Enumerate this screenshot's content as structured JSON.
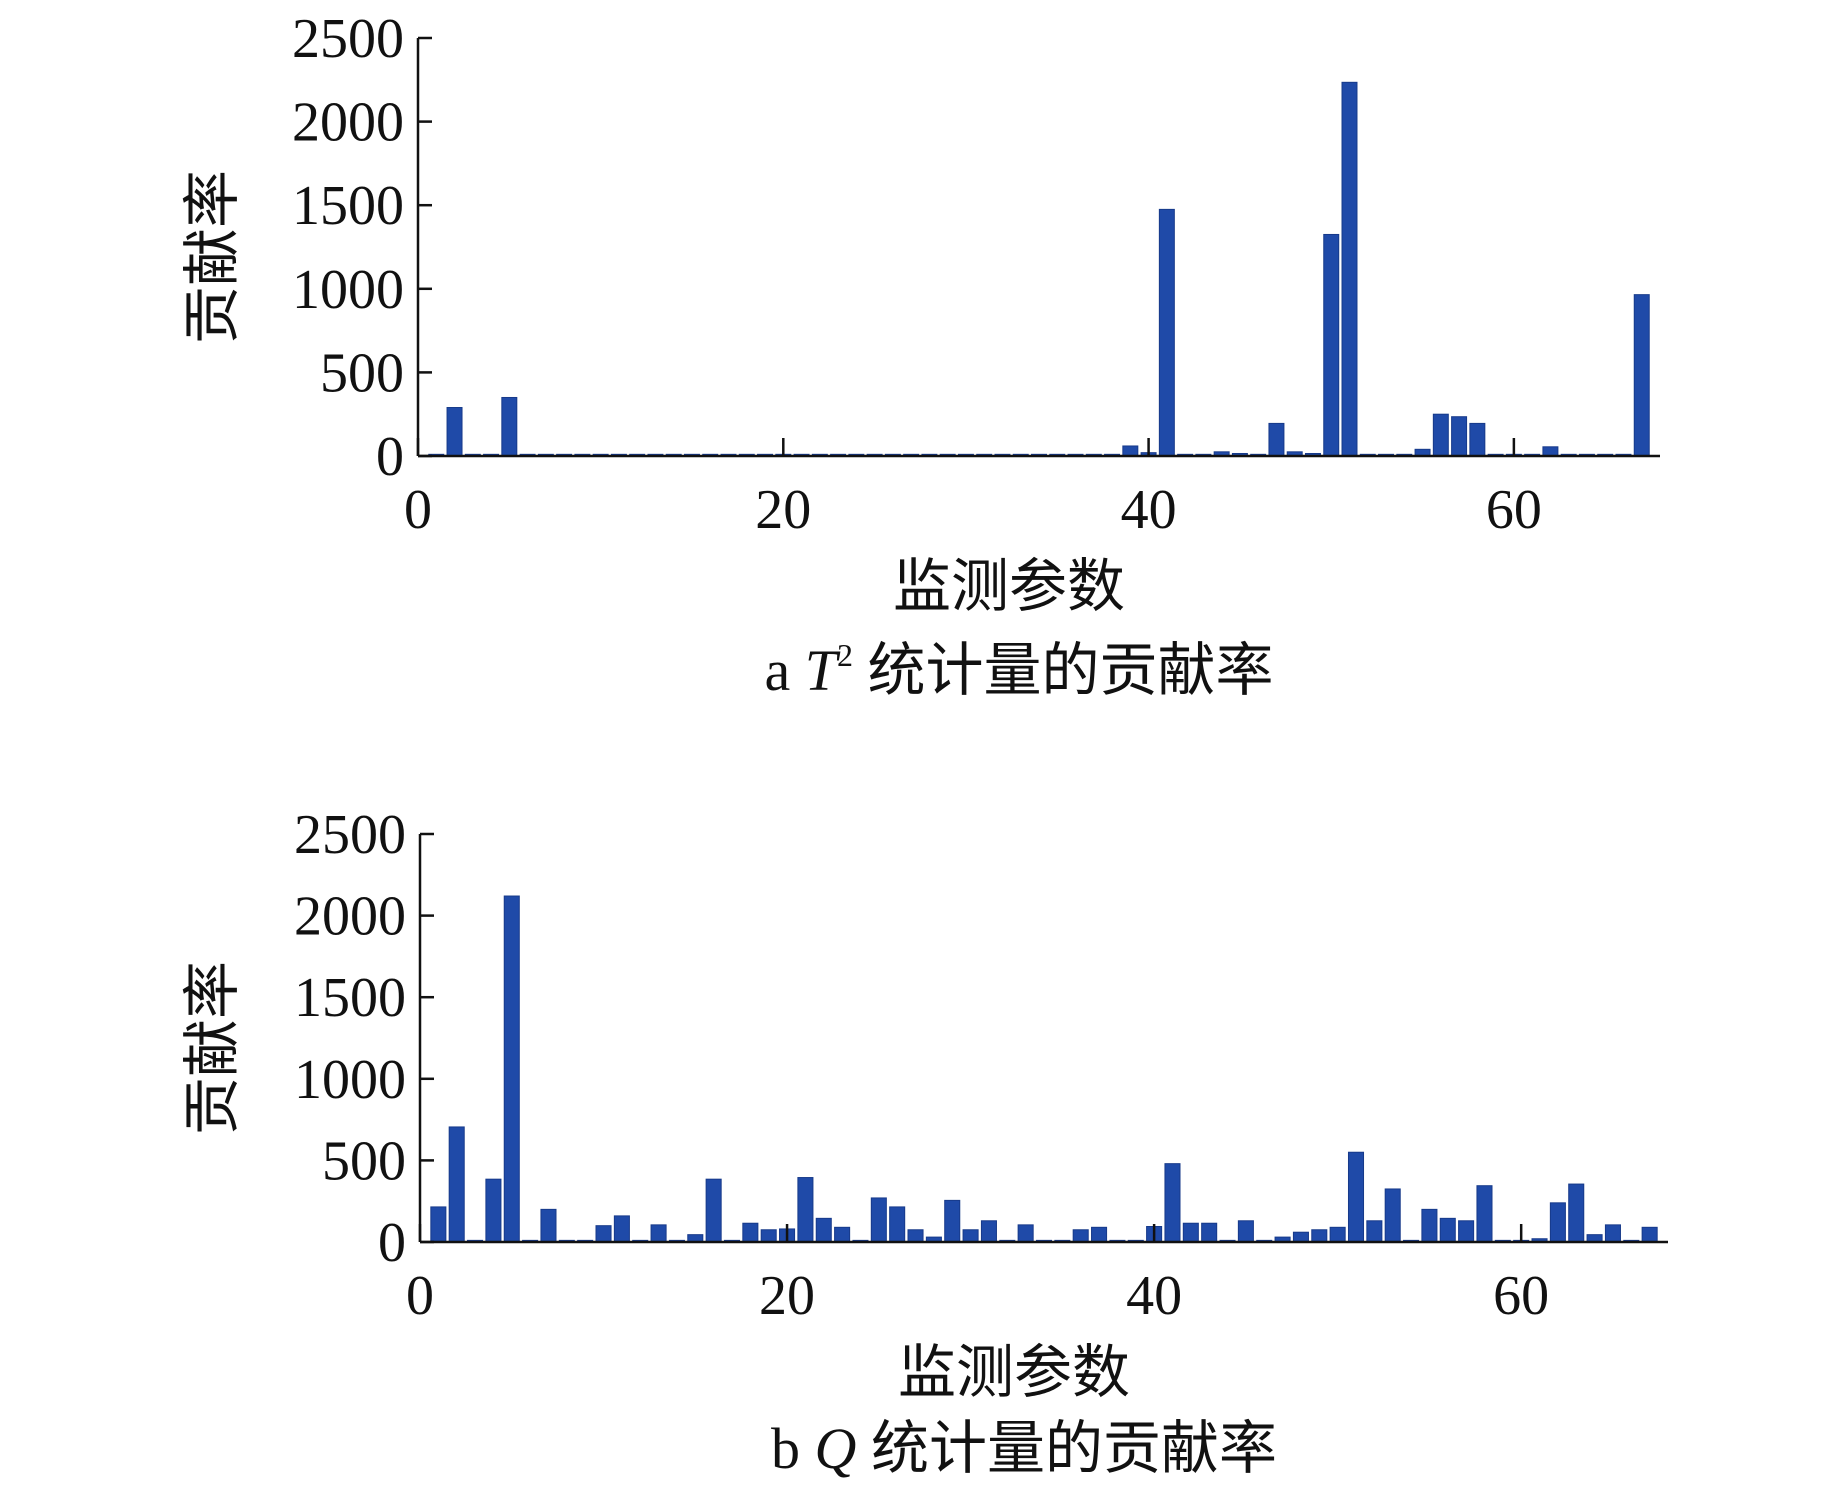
{
  "chart_data": [
    {
      "id": "a",
      "type": "bar",
      "caption_prefix": "a",
      "caption_var": "T",
      "caption_sup": "2",
      "caption_text": "统计量的贡献率",
      "xlabel": "监测参数",
      "ylabel": "贡献率",
      "xlim": [
        0,
        68
      ],
      "ylim": [
        0,
        2500
      ],
      "xticks": [
        "0",
        "20",
        "40",
        "60"
      ],
      "yticks": [
        "0",
        "500",
        "1000",
        "1500",
        "2000",
        "2500"
      ],
      "color": "#1f4aa8",
      "x": [
        1,
        2,
        3,
        4,
        5,
        6,
        7,
        8,
        9,
        10,
        11,
        12,
        13,
        14,
        15,
        16,
        17,
        18,
        19,
        20,
        21,
        22,
        23,
        24,
        25,
        26,
        27,
        28,
        29,
        30,
        31,
        32,
        33,
        34,
        35,
        36,
        37,
        38,
        39,
        40,
        41,
        42,
        43,
        44,
        45,
        46,
        47,
        48,
        49,
        50,
        51,
        52,
        53,
        54,
        55,
        56,
        57,
        58,
        59,
        60,
        61,
        62,
        63,
        64,
        65,
        66,
        67
      ],
      "values": [
        10,
        290,
        10,
        10,
        350,
        10,
        10,
        10,
        10,
        10,
        10,
        10,
        10,
        10,
        10,
        10,
        10,
        10,
        10,
        10,
        10,
        10,
        10,
        10,
        10,
        10,
        10,
        10,
        10,
        10,
        10,
        10,
        10,
        10,
        10,
        10,
        10,
        10,
        60,
        20,
        1475,
        10,
        10,
        25,
        15,
        10,
        195,
        25,
        15,
        1325,
        2235,
        10,
        10,
        10,
        40,
        250,
        235,
        195,
        10,
        10,
        10,
        55,
        10,
        10,
        10,
        10,
        965
      ]
    },
    {
      "id": "b",
      "type": "bar",
      "caption_prefix": "b",
      "caption_var": "Q",
      "caption_sup": "",
      "caption_text": "统计量的贡献率",
      "xlabel": "监测参数",
      "ylabel": "贡献率",
      "xlim": [
        0,
        68
      ],
      "ylim": [
        0,
        2500
      ],
      "xticks": [
        "0",
        "20",
        "40",
        "60"
      ],
      "yticks": [
        "0",
        "500",
        "1000",
        "1500",
        "2000",
        "2500"
      ],
      "color": "#1f4aa8",
      "x": [
        1,
        2,
        3,
        4,
        5,
        6,
        7,
        8,
        9,
        10,
        11,
        12,
        13,
        14,
        15,
        16,
        17,
        18,
        19,
        20,
        21,
        22,
        23,
        24,
        25,
        26,
        27,
        28,
        29,
        30,
        31,
        32,
        33,
        34,
        35,
        36,
        37,
        38,
        39,
        40,
        41,
        42,
        43,
        44,
        45,
        46,
        47,
        48,
        49,
        50,
        51,
        52,
        53,
        54,
        55,
        56,
        57,
        58,
        59,
        60,
        61,
        62,
        63,
        64,
        65,
        66,
        67
      ],
      "values": [
        215,
        705,
        10,
        385,
        2120,
        10,
        200,
        10,
        10,
        100,
        160,
        10,
        105,
        10,
        45,
        385,
        10,
        115,
        75,
        80,
        395,
        145,
        90,
        10,
        270,
        215,
        75,
        30,
        255,
        75,
        130,
        10,
        105,
        10,
        10,
        75,
        90,
        10,
        10,
        95,
        480,
        115,
        115,
        10,
        130,
        10,
        30,
        60,
        75,
        90,
        550,
        130,
        325,
        10,
        200,
        145,
        130,
        345,
        10,
        10,
        20,
        240,
        355,
        45,
        105,
        10,
        90
      ]
    }
  ]
}
